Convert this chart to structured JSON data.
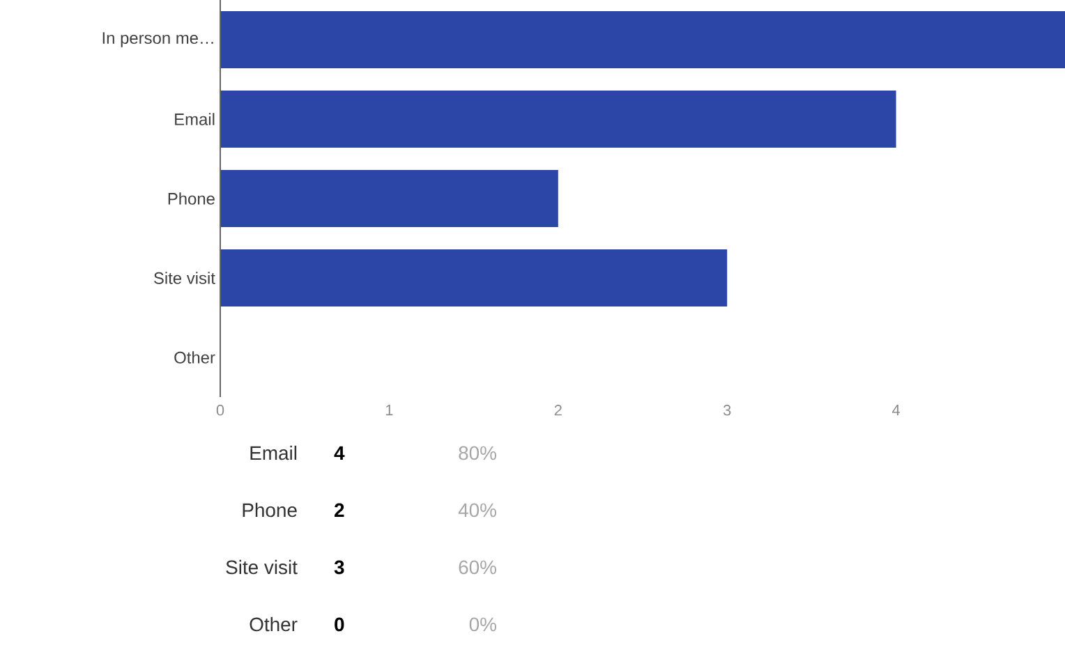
{
  "chart_data": {
    "type": "bar",
    "orientation": "horizontal",
    "categories": [
      "In person me…",
      "Email",
      "Phone",
      "Site visit",
      "Other"
    ],
    "values": [
      5,
      4,
      2,
      3,
      0
    ],
    "color": "#2b46a6",
    "xlim": [
      0,
      5
    ],
    "xticks": [
      0,
      1,
      2,
      3,
      4
    ],
    "annotations": [
      "Email",
      "4",
      "80%",
      "Phone",
      "2",
      "40%",
      "Site visit",
      "3",
      "60%",
      "Other",
      "0",
      "0%"
    ]
  }
}
